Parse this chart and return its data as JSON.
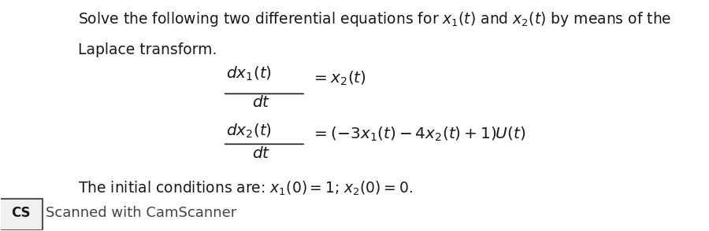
{
  "bg_color": "#ffffff",
  "text_color": "#1a1a1a",
  "intro_line1": "Solve the following two differential equations for $x_1(t)$ and $x_2(t)$ by means of the",
  "intro_line2": "Laplace transform.",
  "eq1_num": "$dx_1(t)$",
  "eq1_den": "$dt$",
  "eq1_rhs": "$= x_2(t)$",
  "eq2_num": "$dx_2(t)$",
  "eq2_den": "$dt$",
  "eq2_rhs": "$= (-3x_1(t) - 4x_2(t) + 1)U(t)$",
  "init_cond": "The initial conditions are: $x_1(0) = 1$; $x_2(0) = 0$.",
  "footer_text": "Scanned with CamScanner",
  "footer_cs": "CS",
  "main_fontsize": 13.5,
  "eq_fontsize": 14.5,
  "footer_fontsize": 13
}
